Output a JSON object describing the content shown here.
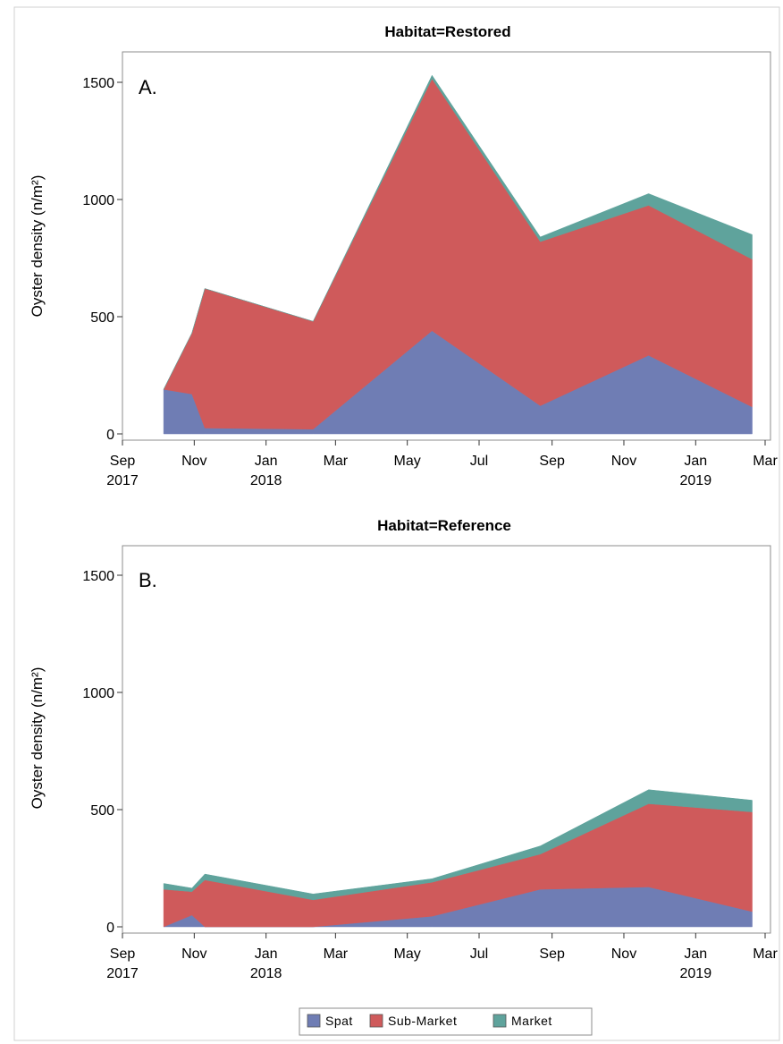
{
  "chart_data": [
    {
      "type": "area",
      "stacked": true,
      "title": "Habitat=Restored",
      "panel_label": "A.",
      "ylabel": "Oyster density (n/m²)",
      "xlabel": "",
      "ylim": [
        0,
        1600
      ],
      "xlim": [
        "2017-09-01",
        "2019-03-01"
      ],
      "yticks": [
        0,
        500,
        1000,
        1500
      ],
      "xticks": [
        {
          "date": "2017-09-01",
          "label": "Sep",
          "year": "2017"
        },
        {
          "date": "2017-11-01",
          "label": "Nov",
          "year": ""
        },
        {
          "date": "2018-01-01",
          "label": "Jan",
          "year": "2018"
        },
        {
          "date": "2018-03-01",
          "label": "Mar",
          "year": ""
        },
        {
          "date": "2018-05-01",
          "label": "May",
          "year": ""
        },
        {
          "date": "2018-07-01",
          "label": "Jul",
          "year": ""
        },
        {
          "date": "2018-09-01",
          "label": "Sep",
          "year": ""
        },
        {
          "date": "2018-11-01",
          "label": "Nov",
          "year": ""
        },
        {
          "date": "2019-01-01",
          "label": "Jan",
          "year": "2019"
        },
        {
          "date": "2019-03-01",
          "label": "Mar",
          "year": ""
        }
      ],
      "x": [
        "2017-10-06",
        "2017-10-30",
        "2017-11-10",
        "2018-02-10",
        "2018-05-22",
        "2018-08-22",
        "2018-11-22",
        "2019-02-18"
      ],
      "series": [
        {
          "name": "Spat",
          "values": [
            190,
            170,
            25,
            20,
            440,
            120,
            335,
            115
          ]
        },
        {
          "name": "Sub-Market",
          "values": [
            0,
            260,
            595,
            460,
            1075,
            700,
            640,
            630
          ]
        },
        {
          "name": "Market",
          "values": [
            0,
            0,
            0,
            0,
            15,
            20,
            50,
            105
          ]
        }
      ]
    },
    {
      "type": "area",
      "stacked": true,
      "title": "Habitat=Reference",
      "panel_label": "B.",
      "ylabel": "Oyster density (n/m²)",
      "xlabel": "",
      "ylim": [
        0,
        1600
      ],
      "xlim": [
        "2017-09-01",
        "2019-03-01"
      ],
      "yticks": [
        0,
        500,
        1000,
        1500
      ],
      "xticks": [
        {
          "date": "2017-09-01",
          "label": "Sep",
          "year": "2017"
        },
        {
          "date": "2017-11-01",
          "label": "Nov",
          "year": ""
        },
        {
          "date": "2018-01-01",
          "label": "Jan",
          "year": "2018"
        },
        {
          "date": "2018-03-01",
          "label": "Mar",
          "year": ""
        },
        {
          "date": "2018-05-01",
          "label": "May",
          "year": ""
        },
        {
          "date": "2018-07-01",
          "label": "Jul",
          "year": ""
        },
        {
          "date": "2018-09-01",
          "label": "Sep",
          "year": ""
        },
        {
          "date": "2018-11-01",
          "label": "Nov",
          "year": ""
        },
        {
          "date": "2019-01-01",
          "label": "Jan",
          "year": "2019"
        },
        {
          "date": "2019-03-01",
          "label": "Mar",
          "year": ""
        }
      ],
      "x": [
        "2017-10-06",
        "2017-10-30",
        "2017-11-10",
        "2018-02-10",
        "2018-05-22",
        "2018-08-22",
        "2018-11-22",
        "2019-02-18"
      ],
      "series": [
        {
          "name": "Spat",
          "values": [
            0,
            50,
            0,
            0,
            45,
            160,
            170,
            65
          ]
        },
        {
          "name": "Sub-Market",
          "values": [
            160,
            100,
            200,
            115,
            145,
            150,
            355,
            425
          ]
        },
        {
          "name": "Market",
          "values": [
            25,
            15,
            25,
            25,
            15,
            35,
            60,
            50
          ]
        }
      ]
    }
  ],
  "legend": {
    "placement": "bottom",
    "items": [
      {
        "label": "Spat",
        "color": "#6f7db4"
      },
      {
        "label": "Sub-Market",
        "color": "#cf5a5b"
      },
      {
        "label": "Market",
        "color": "#5fa39c"
      }
    ]
  },
  "colors": {
    "Spat": "#6f7db4",
    "Sub-Market": "#cf5a5b",
    "Market": "#5fa39c",
    "frame": "#8c8c8c"
  }
}
